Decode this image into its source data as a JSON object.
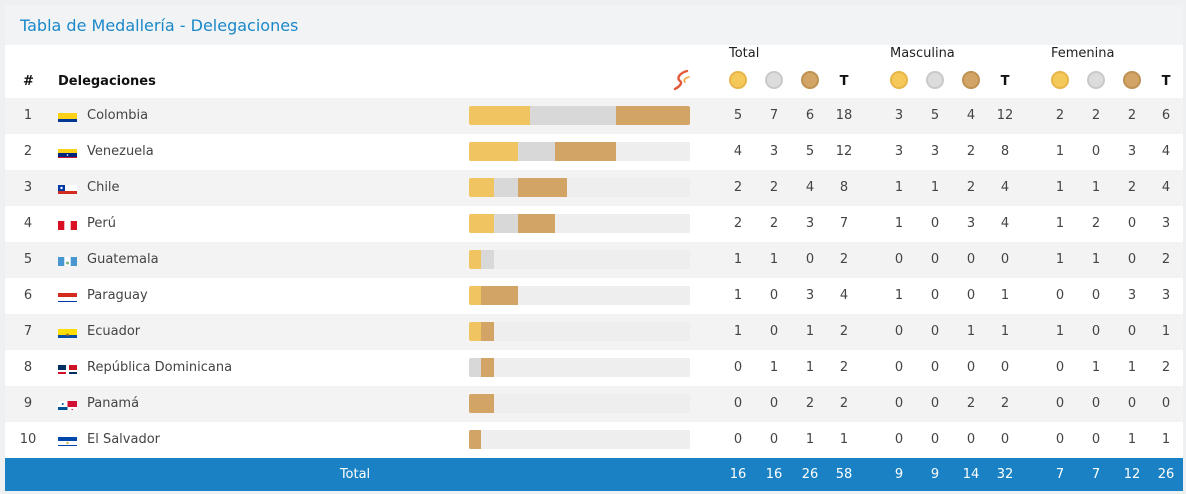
{
  "title": "Tabla de Medallería - Delegaciones",
  "headers": {
    "rank": "#",
    "delegation": "Delegaciones",
    "group_total": "Total",
    "group_male": "Masculina",
    "group_female": "Femenina",
    "t": "T"
  },
  "medal_icons": [
    "gold-medal-icon",
    "silver-medal-icon",
    "bronze-medal-icon"
  ],
  "colors": {
    "accent": "#1a88c9",
    "total_bar": "#1a82c4",
    "gold": "#f0c561",
    "silver": "#d8d8d8",
    "bronze": "#d2a566"
  },
  "bar_max_total": 18,
  "rows": [
    {
      "rank": "1",
      "country": "Colombia",
      "flag": "flag-colombia-icon",
      "total": [
        "5",
        "7",
        "6",
        "18"
      ],
      "male": [
        "3",
        "5",
        "4",
        "12"
      ],
      "female": [
        "2",
        "2",
        "2",
        "6"
      ]
    },
    {
      "rank": "2",
      "country": "Venezuela",
      "flag": "flag-venezuela-icon",
      "total": [
        "4",
        "3",
        "5",
        "12"
      ],
      "male": [
        "3",
        "3",
        "2",
        "8"
      ],
      "female": [
        "1",
        "0",
        "3",
        "4"
      ]
    },
    {
      "rank": "3",
      "country": "Chile",
      "flag": "flag-chile-icon",
      "total": [
        "2",
        "2",
        "4",
        "8"
      ],
      "male": [
        "1",
        "1",
        "2",
        "4"
      ],
      "female": [
        "1",
        "1",
        "2",
        "4"
      ]
    },
    {
      "rank": "4",
      "country": "Perú",
      "flag": "flag-peru-icon",
      "total": [
        "2",
        "2",
        "3",
        "7"
      ],
      "male": [
        "1",
        "0",
        "3",
        "4"
      ],
      "female": [
        "1",
        "2",
        "0",
        "3"
      ]
    },
    {
      "rank": "5",
      "country": "Guatemala",
      "flag": "flag-guatemala-icon",
      "total": [
        "1",
        "1",
        "0",
        "2"
      ],
      "male": [
        "0",
        "0",
        "0",
        "0"
      ],
      "female": [
        "1",
        "1",
        "0",
        "2"
      ]
    },
    {
      "rank": "6",
      "country": "Paraguay",
      "flag": "flag-paraguay-icon",
      "total": [
        "1",
        "0",
        "3",
        "4"
      ],
      "male": [
        "1",
        "0",
        "0",
        "1"
      ],
      "female": [
        "0",
        "0",
        "3",
        "3"
      ]
    },
    {
      "rank": "7",
      "country": "Ecuador",
      "flag": "flag-ecuador-icon",
      "total": [
        "1",
        "0",
        "1",
        "2"
      ],
      "male": [
        "0",
        "0",
        "1",
        "1"
      ],
      "female": [
        "1",
        "0",
        "0",
        "1"
      ]
    },
    {
      "rank": "8",
      "country": "República Dominicana",
      "flag": "flag-dominican-republic-icon",
      "total": [
        "0",
        "1",
        "1",
        "2"
      ],
      "male": [
        "0",
        "0",
        "0",
        "0"
      ],
      "female": [
        "0",
        "1",
        "1",
        "2"
      ]
    },
    {
      "rank": "9",
      "country": "Panamá",
      "flag": "flag-panama-icon",
      "total": [
        "0",
        "0",
        "2",
        "2"
      ],
      "male": [
        "0",
        "0",
        "2",
        "2"
      ],
      "female": [
        "0",
        "0",
        "0",
        "0"
      ]
    },
    {
      "rank": "10",
      "country": "El Salvador",
      "flag": "flag-el-salvador-icon",
      "total": [
        "0",
        "0",
        "1",
        "1"
      ],
      "male": [
        "0",
        "0",
        "0",
        "0"
      ],
      "female": [
        "0",
        "0",
        "1",
        "1"
      ]
    }
  ],
  "totals": {
    "label": "Total",
    "total": [
      "16",
      "16",
      "26",
      "58"
    ],
    "male": [
      "9",
      "9",
      "14",
      "32"
    ],
    "female": [
      "7",
      "7",
      "12",
      "26"
    ]
  }
}
